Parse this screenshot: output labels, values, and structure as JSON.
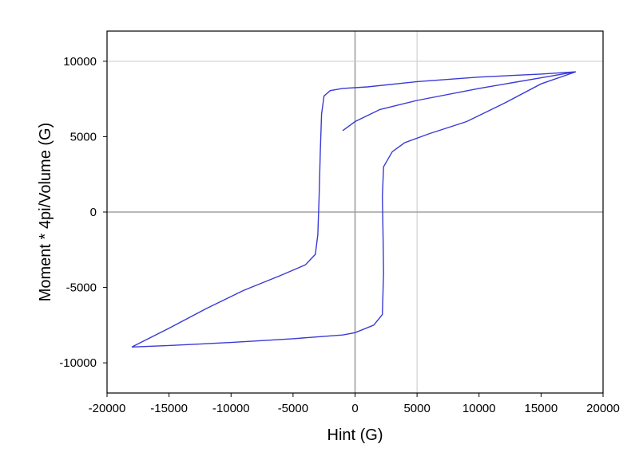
{
  "chart_data": {
    "type": "line",
    "title": "",
    "xlabel": "Hint (G)",
    "ylabel": "Moment * 4pi/Volume (G)",
    "xlim": [
      -20000,
      20000
    ],
    "ylim": [
      -12000,
      12000
    ],
    "x_ticks": [
      -20000,
      -15000,
      -10000,
      -5000,
      0,
      5000,
      10000,
      15000,
      20000
    ],
    "y_ticks": [
      -10000,
      -5000,
      0,
      5000,
      10000
    ],
    "x_tick_labels": [
      "-20000",
      "-15000",
      "-10000",
      "-5000",
      "0",
      "5000",
      "10000",
      "15000",
      "20000"
    ],
    "y_tick_labels": [
      "-10000",
      "-5000",
      "0",
      "5000",
      "10000"
    ],
    "grid": {
      "x_lines": [
        0,
        5000
      ],
      "y_lines": [
        0,
        10000
      ]
    },
    "series_color": "#3a3ad6",
    "series": [
      {
        "points": [
          [
            -1000,
            5400
          ],
          [
            0,
            6000
          ],
          [
            2000,
            6800
          ],
          [
            5000,
            7400
          ],
          [
            10000,
            8200
          ],
          [
            15000,
            8900
          ],
          [
            17800,
            9300
          ],
          [
            15000,
            9150
          ],
          [
            10000,
            8950
          ],
          [
            5000,
            8650
          ],
          [
            1000,
            8300
          ],
          [
            -1000,
            8200
          ],
          [
            -2000,
            8050
          ],
          [
            -2500,
            7700
          ],
          [
            -2700,
            6500
          ],
          [
            -2800,
            4000
          ],
          [
            -2900,
            1000
          ],
          [
            -3000,
            -1500
          ],
          [
            -3200,
            -2800
          ],
          [
            -4000,
            -3500
          ],
          [
            -6000,
            -4200
          ],
          [
            -9000,
            -5200
          ],
          [
            -12000,
            -6400
          ],
          [
            -15000,
            -7700
          ],
          [
            -18000,
            -8950
          ],
          [
            -15000,
            -8850
          ],
          [
            -10000,
            -8650
          ],
          [
            -5000,
            -8400
          ],
          [
            -1000,
            -8150
          ],
          [
            0,
            -8000
          ],
          [
            1500,
            -7500
          ],
          [
            2200,
            -6800
          ],
          [
            2300,
            -4000
          ],
          [
            2250,
            -1000
          ],
          [
            2200,
            1000
          ],
          [
            2300,
            3000
          ],
          [
            3000,
            4000
          ],
          [
            4000,
            4600
          ],
          [
            6000,
            5200
          ],
          [
            9000,
            6000
          ],
          [
            12000,
            7200
          ],
          [
            15000,
            8500
          ],
          [
            17800,
            9300
          ]
        ]
      }
    ]
  }
}
